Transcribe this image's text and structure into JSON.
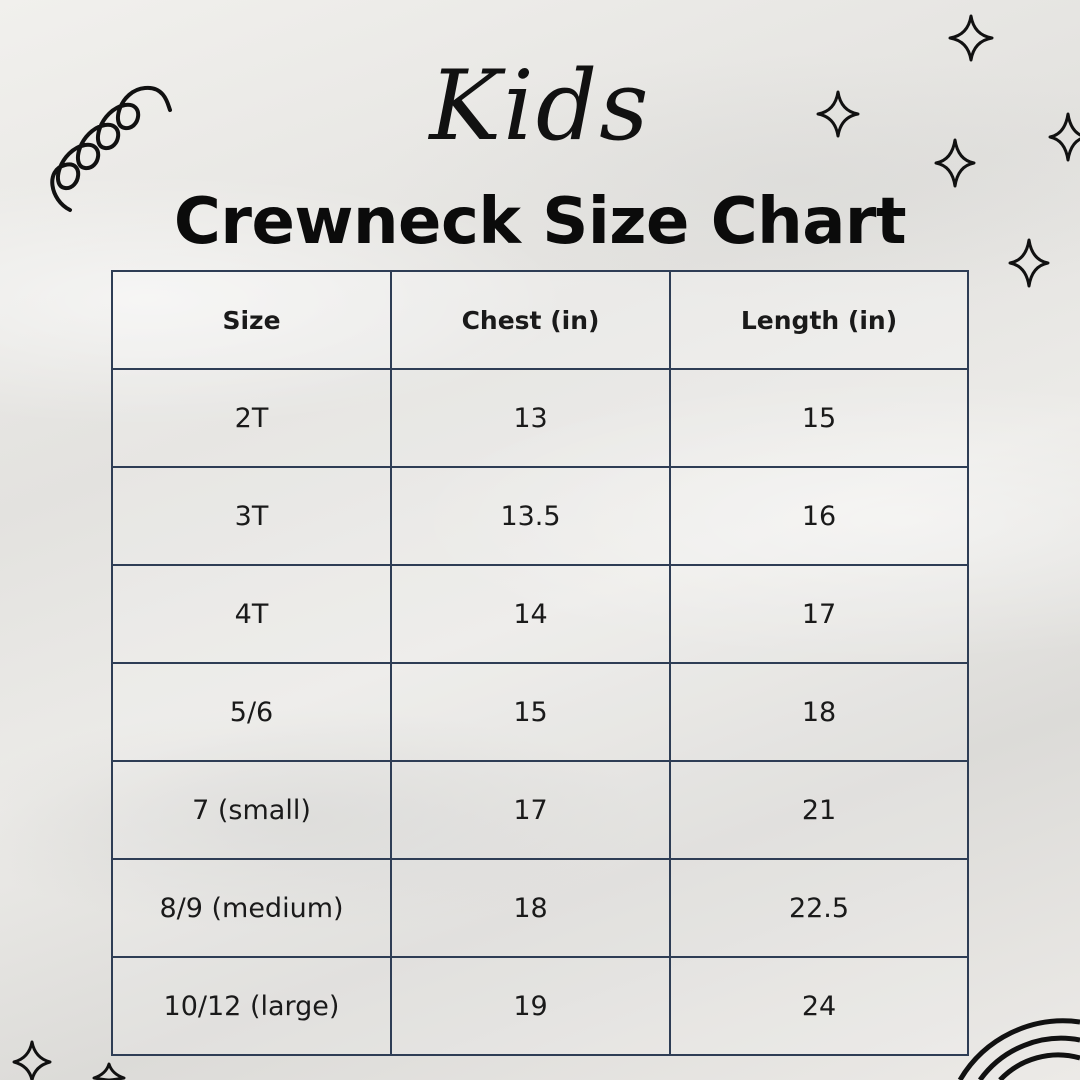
{
  "header": {
    "script_title": "Kids",
    "main_title": "Crewneck Size Chart"
  },
  "table": {
    "columns": [
      "Size",
      "Chest (in)",
      "Length (in)"
    ],
    "rows": [
      [
        "2T",
        "13",
        "15"
      ],
      [
        "3T",
        "13.5",
        "16"
      ],
      [
        "4T",
        "14",
        "17"
      ],
      [
        "5/6",
        "15",
        "18"
      ],
      [
        "7 (small)",
        "17",
        "21"
      ],
      [
        "8/9 (medium)",
        "18",
        "22.5"
      ],
      [
        "10/12 (large)",
        "19",
        "24"
      ]
    ]
  },
  "decorations": {
    "icons": [
      "squiggle-icon",
      "sparkle-icon",
      "rainbow-arc-icon"
    ],
    "line_color": "#111111",
    "table_border_color": "#2e3d55"
  }
}
